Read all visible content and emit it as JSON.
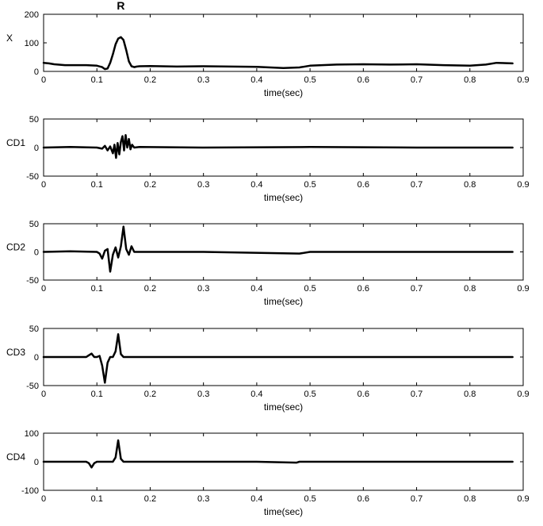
{
  "chart_data": [
    {
      "type": "line",
      "ylabel": "X",
      "xlabel": "time(sec)",
      "annotation": {
        "text": "R",
        "x": 0.145
      },
      "xlim": [
        0,
        0.9
      ],
      "ylim": [
        0,
        200
      ],
      "xticks": [
        "0",
        "0.1",
        "0.2",
        "0.3",
        "0.4",
        "0.5",
        "0.6",
        "0.7",
        "0.8",
        "0.9"
      ],
      "yticks": [
        "0",
        "100",
        "200"
      ],
      "grid": false,
      "series": [
        {
          "x": [
            0,
            0.01,
            0.02,
            0.04,
            0.06,
            0.08,
            0.1,
            0.11,
            0.115,
            0.12,
            0.125,
            0.13,
            0.135,
            0.14,
            0.145,
            0.15,
            0.155,
            0.16,
            0.165,
            0.17,
            0.175,
            0.18,
            0.2,
            0.25,
            0.3,
            0.35,
            0.4,
            0.45,
            0.48,
            0.5,
            0.55,
            0.6,
            0.65,
            0.7,
            0.75,
            0.8,
            0.83,
            0.85,
            0.88
          ],
          "y": [
            30,
            28,
            25,
            22,
            22,
            22,
            20,
            15,
            8,
            10,
            30,
            60,
            95,
            115,
            120,
            110,
            75,
            35,
            18,
            15,
            17,
            18,
            19,
            17,
            18,
            17,
            16,
            12,
            14,
            20,
            24,
            25,
            24,
            25,
            22,
            20,
            24,
            30,
            28
          ]
        }
      ]
    },
    {
      "type": "line",
      "ylabel": "CD1",
      "xlabel": "time(sec)",
      "xlim": [
        0,
        0.9
      ],
      "ylim": [
        -50,
        50
      ],
      "xticks": [
        "0",
        "0.1",
        "0.2",
        "0.3",
        "0.4",
        "0.5",
        "0.6",
        "0.7",
        "0.8",
        "0.9"
      ],
      "yticks": [
        "-50",
        "0",
        "50"
      ],
      "grid": false,
      "series": [
        {
          "x": [
            0,
            0.05,
            0.1,
            0.11,
            0.115,
            0.12,
            0.125,
            0.13,
            0.133,
            0.136,
            0.139,
            0.142,
            0.145,
            0.148,
            0.151,
            0.154,
            0.157,
            0.16,
            0.163,
            0.166,
            0.17,
            0.18,
            0.3,
            0.5,
            0.7,
            0.88
          ],
          "y": [
            0,
            1,
            0,
            -2,
            3,
            -5,
            2,
            -10,
            5,
            -18,
            8,
            -12,
            10,
            20,
            -5,
            22,
            0,
            15,
            -3,
            5,
            0,
            1,
            0,
            1,
            0,
            0
          ]
        }
      ]
    },
    {
      "type": "line",
      "ylabel": "CD2",
      "xlabel": "time(sec)",
      "xlim": [
        0,
        0.9
      ],
      "ylim": [
        -50,
        50
      ],
      "xticks": [
        "0",
        "0.1",
        "0.2",
        "0.3",
        "0.4",
        "0.5",
        "0.6",
        "0.7",
        "0.8",
        "0.9"
      ],
      "yticks": [
        "-50",
        "0",
        "50"
      ],
      "grid": false,
      "series": [
        {
          "x": [
            0,
            0.05,
            0.1,
            0.105,
            0.11,
            0.115,
            0.12,
            0.125,
            0.13,
            0.135,
            0.14,
            0.145,
            0.15,
            0.155,
            0.16,
            0.165,
            0.17,
            0.18,
            0.3,
            0.48,
            0.5,
            0.7,
            0.88
          ],
          "y": [
            0,
            1,
            0,
            -3,
            -12,
            2,
            5,
            -35,
            -5,
            8,
            -10,
            10,
            45,
            5,
            -5,
            10,
            0,
            0,
            0,
            -3,
            0,
            0,
            0
          ]
        }
      ]
    },
    {
      "type": "line",
      "ylabel": "CD3",
      "xlabel": "time(sec)",
      "xlim": [
        0,
        0.9
      ],
      "ylim": [
        -50,
        50
      ],
      "xticks": [
        "0",
        "0.1",
        "0.2",
        "0.3",
        "0.4",
        "0.5",
        "0.6",
        "0.7",
        "0.8",
        "0.9"
      ],
      "yticks": [
        "-50",
        "0",
        "50"
      ],
      "grid": false,
      "series": [
        {
          "x": [
            0,
            0.08,
            0.085,
            0.09,
            0.095,
            0.1,
            0.105,
            0.11,
            0.115,
            0.12,
            0.125,
            0.13,
            0.135,
            0.14,
            0.145,
            0.15,
            0.2,
            0.3,
            0.5,
            0.7,
            0.88
          ],
          "y": [
            0,
            0,
            3,
            6,
            0,
            0,
            2,
            -15,
            -45,
            -10,
            0,
            0,
            10,
            40,
            5,
            0,
            0,
            0,
            0,
            0,
            0
          ]
        }
      ]
    },
    {
      "type": "line",
      "ylabel": "CD4",
      "xlabel": "time(sec)",
      "xlim": [
        0,
        0.9
      ],
      "ylim": [
        -100,
        100
      ],
      "xticks": [
        "0",
        "0.1",
        "0.2",
        "0.3",
        "0.4",
        "0.5",
        "0.6",
        "0.7",
        "0.8",
        "0.9"
      ],
      "yticks": [
        "-100",
        "0",
        "100"
      ],
      "grid": false,
      "series": [
        {
          "x": [
            0,
            0.08,
            0.085,
            0.09,
            0.095,
            0.1,
            0.13,
            0.135,
            0.14,
            0.145,
            0.15,
            0.2,
            0.4,
            0.475,
            0.48,
            0.6,
            0.88
          ],
          "y": [
            0,
            0,
            -5,
            -20,
            -5,
            0,
            0,
            15,
            75,
            10,
            0,
            0,
            0,
            -3,
            0,
            0,
            0
          ]
        }
      ]
    }
  ],
  "colors": {
    "line": "#000000",
    "axis": "#000000",
    "background": "#ffffff"
  }
}
